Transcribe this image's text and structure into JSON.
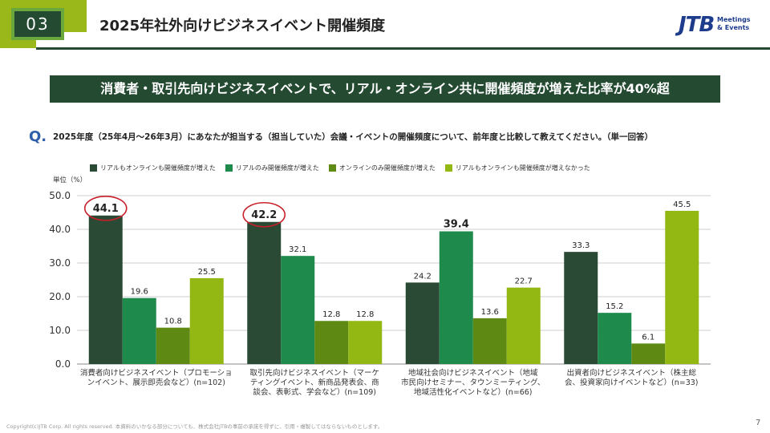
{
  "header": {
    "section_number": "03",
    "title": "2025年社外向けビジネスイベント開催頻度",
    "logo": {
      "brand": "JTB",
      "line1": "Meetings",
      "line2": "& Events"
    }
  },
  "banner": "消費者・取引先向けビジネスイベントで、リアル・オンライン共に開催頻度が増えた比率が40%超",
  "question": {
    "marker": "Q.",
    "text": "2025年度（25年4月～26年3月）にあなたが担当する（担当していた）会議・イベントの開催頻度について、前年度と比較して教えてください。（単一回答）"
  },
  "chart_data": {
    "type": "bar",
    "unit_label": "単位（%）",
    "ylim": [
      0,
      50
    ],
    "yticks": [
      "0.0",
      "10.0",
      "20.0",
      "30.0",
      "40.0",
      "50.0"
    ],
    "grid": true,
    "legend_position": "top",
    "categories": [
      [
        "消費者向けビジネスイベント（プロモーショ",
        "ンイベント、展示即売会など）(n=102)"
      ],
      [
        "取引先向けビジネスイベント（マーケ",
        "ティングイベント、新商品発表会、商",
        "談会、表彰式、学会など）(n=109)"
      ],
      [
        "地域社会向けビジネスイベント（地域",
        "市民向けセミナー、タウンミーティング、",
        "地域活性化イベントなど）(n=66)"
      ],
      [
        "出資者向けビジネスイベント（株主総",
        "会、投資家向けイベントなど）(n=33)"
      ]
    ],
    "series": [
      {
        "name": "リアルもオンラインも開催頻度が増えた",
        "color": "#2b4a35",
        "values": [
          44.1,
          42.2,
          24.2,
          33.3
        ]
      },
      {
        "name": "リアルのみ開催頻度が増えた",
        "color": "#1e8a4c",
        "values": [
          19.6,
          32.1,
          39.4,
          15.2
        ]
      },
      {
        "name": "オンラインのみ開催頻度が増えた",
        "color": "#5e8a14",
        "values": [
          10.8,
          12.8,
          13.6,
          6.1
        ]
      },
      {
        "name": "リアルもオンラインも開催頻度が増えなかった",
        "color": "#93b814",
        "values": [
          25.5,
          12.8,
          22.7,
          45.5
        ]
      }
    ],
    "highlighted": [
      {
        "series": 0,
        "category": 0
      },
      {
        "series": 0,
        "category": 1
      },
      {
        "series": 1,
        "category": 2
      }
    ],
    "circled": [
      {
        "series": 0,
        "category": 0
      },
      {
        "series": 0,
        "category": 1
      }
    ]
  },
  "footer": {
    "copyright": "Copyright(c)JTB Corp. All rights reserved.  本資料のいかなる部分についても、株式会社JTBの事前の承諾を得ずに、引用・複製してはならないものとします。",
    "page_number": "7"
  }
}
